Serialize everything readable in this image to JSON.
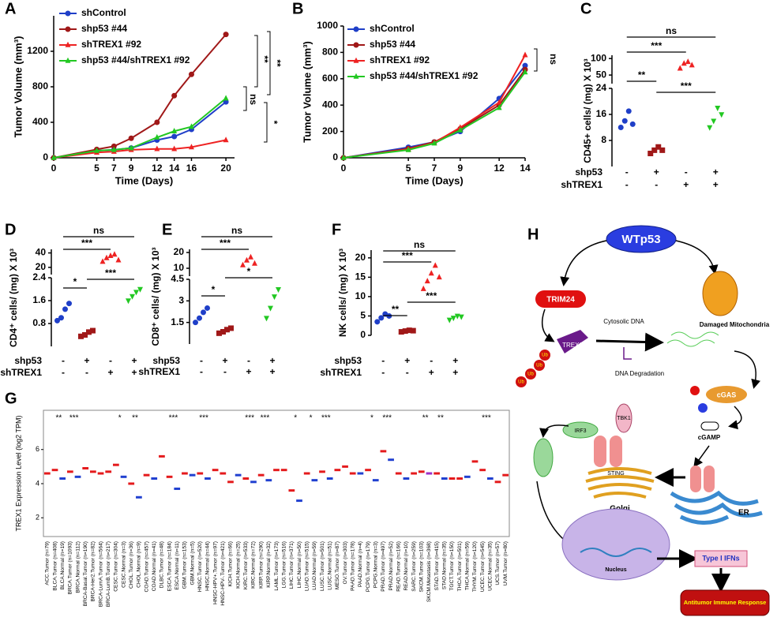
{
  "chart_data": [
    {
      "type": "line",
      "label": "A",
      "xlabel": "Time (Days)",
      "ylabel": "Tumor Volume (mm³)",
      "x": [
        0,
        5,
        7,
        9,
        12,
        14,
        16,
        20
      ],
      "xlim": [
        0,
        21
      ],
      "xticks": [
        0,
        5,
        7,
        9,
        12,
        14,
        16,
        20
      ],
      "ylim": [
        0,
        1600
      ],
      "yticks": [
        0,
        400,
        800,
        1200
      ],
      "series": [
        {
          "name": "shControl",
          "color": "#1f3fc8",
          "marker": "circle",
          "values": [
            0,
            80,
            90,
            110,
            200,
            240,
            320,
            630
          ]
        },
        {
          "name": "shp53 #44",
          "color": "#a01818",
          "marker": "circle",
          "values": [
            0,
            95,
            130,
            220,
            400,
            700,
            940,
            1390
          ]
        },
        {
          "name": "shTREX1 #92",
          "color": "#ee2222",
          "marker": "triangle",
          "values": [
            0,
            60,
            70,
            90,
            100,
            100,
            120,
            200
          ]
        },
        {
          "name": "shp53 #44/shTREX1 #92",
          "color": "#22c822",
          "marker": "triangle",
          "values": [
            0,
            80,
            90,
            110,
            230,
            300,
            350,
            670
          ]
        }
      ],
      "annotations": [
        "**",
        "**",
        "ns",
        "*"
      ]
    },
    {
      "type": "line",
      "label": "B",
      "xlabel": "Time (Days)",
      "ylabel": "Tumor Volume (mm³)",
      "x": [
        0,
        5,
        7,
        9,
        12,
        14
      ],
      "xlim": [
        0,
        14
      ],
      "xticks": [
        0,
        5,
        7,
        9,
        12,
        14
      ],
      "ylim": [
        0,
        1000
      ],
      "yticks": [
        0,
        200,
        400,
        600,
        800,
        1000
      ],
      "series": [
        {
          "name": "shControl",
          "color": "#1f3fc8",
          "marker": "circle",
          "values": [
            0,
            80,
            120,
            200,
            450,
            700
          ]
        },
        {
          "name": "shp53 #44",
          "color": "#a01818",
          "marker": "circle",
          "values": [
            0,
            70,
            120,
            220,
            400,
            670
          ]
        },
        {
          "name": "shTREX1 #92",
          "color": "#ee2222",
          "marker": "triangle",
          "values": [
            0,
            65,
            115,
            230,
            420,
            780
          ]
        },
        {
          "name": "shp53 #44/shTREX1 #92",
          "color": "#22c822",
          "marker": "triangle",
          "values": [
            0,
            60,
            110,
            210,
            380,
            650
          ]
        }
      ],
      "annotations": [
        "ns"
      ]
    },
    {
      "type": "dot",
      "label": "C",
      "ylabel": "CD45+ cells/ (mg) X 10³",
      "ylim": [
        0,
        24
      ],
      "yticks": [
        8,
        16,
        24
      ],
      "ylim_upper": [
        24,
        110
      ],
      "yticks_upper": [
        50,
        100
      ],
      "row_labels": [
        "shp53",
        "shTREX1"
      ],
      "rows": [
        [
          "-",
          "+",
          "-",
          "+"
        ],
        [
          "-",
          "-",
          "+",
          "+"
        ]
      ],
      "groups": [
        {
          "color": "#1f3fc8",
          "marker": "circle",
          "values": [
            12,
            14,
            17,
            13
          ]
        },
        {
          "color": "#a01818",
          "marker": "square",
          "values": [
            4,
            5,
            6,
            5
          ]
        },
        {
          "color": "#ee2222",
          "marker": "triangle",
          "values": [
            70,
            85,
            90,
            80
          ]
        },
        {
          "color": "#22c822",
          "marker": "triangle-down",
          "values": [
            12,
            14,
            18,
            16
          ]
        }
      ],
      "annotations": [
        "ns",
        "***",
        "**",
        "***"
      ]
    },
    {
      "type": "dot",
      "label": "D",
      "ylabel": "CD4⁺ cells/ (mg) X 10³",
      "ylim": [
        0,
        2.4
      ],
      "yticks": [
        0.8,
        1.6,
        2.4
      ],
      "ylim_upper": [
        10,
        45
      ],
      "yticks_upper": [
        20,
        40
      ],
      "row_labels": [
        "shp53",
        "shTREX1"
      ],
      "rows": [
        [
          "-",
          "+",
          "-",
          "+"
        ],
        [
          "-",
          "-",
          "+",
          "+"
        ]
      ],
      "groups": [
        {
          "color": "#1f3fc8",
          "marker": "circle",
          "values": [
            0.9,
            1.0,
            1.3,
            1.5
          ]
        },
        {
          "color": "#a01818",
          "marker": "square",
          "values": [
            0.35,
            0.4,
            0.5,
            0.55
          ]
        },
        {
          "color": "#ee2222",
          "marker": "triangle",
          "values": [
            28,
            33,
            36,
            38,
            30
          ]
        },
        {
          "color": "#22c822",
          "marker": "triangle-down",
          "values": [
            1.6,
            1.75,
            1.9,
            2.0
          ]
        }
      ],
      "annotations": [
        "ns",
        "***",
        "*",
        "***"
      ]
    },
    {
      "type": "dot",
      "label": "E",
      "ylabel": "CD8⁺ cells/ (mg) X 10³",
      "ylim": [
        0,
        4.5
      ],
      "yticks": [
        1.5,
        3,
        4.5
      ],
      "ylim_upper": [
        5,
        22
      ],
      "yticks_upper": [
        10,
        20
      ],
      "row_labels": [
        "shp53",
        "shTREX1"
      ],
      "rows": [
        [
          "-",
          "+",
          "-",
          "+"
        ],
        [
          "-",
          "-",
          "+",
          "+"
        ]
      ],
      "groups": [
        {
          "color": "#1f3fc8",
          "marker": "circle",
          "values": [
            1.5,
            1.8,
            2.2,
            2.5
          ]
        },
        {
          "color": "#a01818",
          "marker": "square",
          "values": [
            0.75,
            0.85,
            1.0,
            1.1
          ]
        },
        {
          "color": "#ee2222",
          "marker": "triangle",
          "values": [
            12,
            15,
            17,
            13
          ]
        },
        {
          "color": "#22c822",
          "marker": "triangle-down",
          "values": [
            1.8,
            2.5,
            3.3,
            3.8
          ]
        }
      ],
      "annotations": [
        "ns",
        "***",
        "*",
        "*"
      ]
    },
    {
      "type": "dot",
      "label": "F",
      "ylabel": "NK cells/ (mg) X 10³",
      "ylim": [
        0,
        22
      ],
      "yticks": [
        0,
        5,
        10,
        15,
        20
      ],
      "row_labels": [
        "shp53",
        "shTREX1"
      ],
      "rows": [
        [
          "-",
          "+",
          "-",
          "+"
        ],
        [
          "-",
          "-",
          "+",
          "+"
        ]
      ],
      "groups": [
        {
          "color": "#1f3fc8",
          "marker": "circle",
          "values": [
            3.5,
            4.5,
            5.5,
            5
          ]
        },
        {
          "color": "#a01818",
          "marker": "square",
          "values": [
            0.9,
            1.1,
            1.3,
            1.2
          ]
        },
        {
          "color": "#ee2222",
          "marker": "triangle",
          "values": [
            12,
            14,
            16,
            18,
            15
          ]
        },
        {
          "color": "#22c822",
          "marker": "triangle-down",
          "values": [
            4,
            4.5,
            5,
            4.8
          ]
        }
      ],
      "annotations": [
        "ns",
        "***",
        "**",
        "***"
      ]
    },
    {
      "type": "box",
      "label": "G",
      "ylabel": "TREX1 Expression Level (log2 TPM)",
      "ylim": [
        0.9,
        8.3
      ],
      "yticks": [
        2,
        4,
        6
      ],
      "categories": [
        "ACC.Tumor (n=79)",
        "BLCA.Tumor (n=408)",
        "BLCA.Normal (n=19)",
        "BRCA.Tumor (n=1093)",
        "BRCA.Normal (n=112)",
        "BRCA-Basal.Tumor (n=190)",
        "BRCA-Her2.Tumor (n=82)",
        "BRCA-LumA.Tumor (n=564)",
        "BRCA-LumB.Tumor (n=217)",
        "CESC.Tumor (n=304)",
        "CESC.Normal (n=3)",
        "CHOL.Tumor (n=36)",
        "CHOL.Normal (n=9)",
        "COAD.Tumor (n=457)",
        "COAD.Normal (n=41)",
        "DLBC.Tumor (n=48)",
        "ESCA.Tumor (n=184)",
        "ESCA.Normal (n=11)",
        "GBM.Tumor (n=153)",
        "GBM.Normal (n=5)",
        "HNSC.Tumor (n=520)",
        "HNSC.Normal (n=44)",
        "HNSC-HPV+.Tumor (n=97)",
        "HNSC-HPV-.Tumor (n=421)",
        "KICH.Tumor (n=66)",
        "KICH.Normal (n=25)",
        "KIRC.Tumor (n=533)",
        "KIRC.Normal (n=72)",
        "KIRP.Tumor (n=290)",
        "KIRP.Normal (n=32)",
        "LAML.Tumor (n=173)",
        "LGG.Tumor (n=516)",
        "LIHC.Tumor (n=371)",
        "LIHC.Normal (n=50)",
        "LUAD.Tumor (n=515)",
        "LUAD.Normal (n=59)",
        "LUSC.Tumor (n=501)",
        "LUSC.Normal (n=51)",
        "MESO.Tumor (n=87)",
        "OV.Tumor (n=303)",
        "PAAD.Tumor (n=178)",
        "PAAD.Normal (n=4)",
        "PCPG.Tumor (n=179)",
        "PCPG.Normal (n=3)",
        "PRAD.Tumor (n=497)",
        "PRAD.Normal (n=52)",
        "READ.Tumor (n=166)",
        "READ.Normal (n=10)",
        "SARC.Tumor (n=259)",
        "SKCM.Tumor (n=103)",
        "SKCM.Metastasis (n=368)",
        "STAD.Tumor (n=415)",
        "STAD.Normal (n=35)",
        "TGCT.Tumor (n=150)",
        "THCA.Tumor (n=501)",
        "THCA.Normal (n=59)",
        "THYM.Tumor (n=120)",
        "UCEC.Tumor (n=545)",
        "UCEC.Normal (n=35)",
        "UCS.Tumor (n=57)",
        "UVM.Tumor (n=80)"
      ],
      "values": [
        4.6,
        4.8,
        4.3,
        4.7,
        4.4,
        4.9,
        4.7,
        4.6,
        4.7,
        5.1,
        4.4,
        4.0,
        3.2,
        4.5,
        4.3,
        5.6,
        4.4,
        3.7,
        4.6,
        4.5,
        4.6,
        4.3,
        4.8,
        4.6,
        4.1,
        4.5,
        4.3,
        4.1,
        4.5,
        4.2,
        4.8,
        4.8,
        3.6,
        3.0,
        4.6,
        4.2,
        4.7,
        4.3,
        4.8,
        5.0,
        4.6,
        4.6,
        4.8,
        4.2,
        5.9,
        5.4,
        4.6,
        4.3,
        4.6,
        4.7,
        4.6,
        4.6,
        4.3,
        4.3,
        4.3,
        4.4,
        5.3,
        4.8,
        4.3,
        4.1,
        4.5
      ],
      "colors": [
        "#e41a1c",
        "#e41a1c",
        "#2040d0",
        "#e41a1c",
        "#2040d0",
        "#e41a1c",
        "#e41a1c",
        "#e41a1c",
        "#e41a1c",
        "#e41a1c",
        "#2040d0",
        "#e41a1c",
        "#2040d0",
        "#e41a1c",
        "#2040d0",
        "#e41a1c",
        "#e41a1c",
        "#2040d0",
        "#e41a1c",
        "#2040d0",
        "#e41a1c",
        "#2040d0",
        "#e41a1c",
        "#e41a1c",
        "#e41a1c",
        "#2040d0",
        "#e41a1c",
        "#2040d0",
        "#e41a1c",
        "#2040d0",
        "#e41a1c",
        "#e41a1c",
        "#e41a1c",
        "#2040d0",
        "#e41a1c",
        "#2040d0",
        "#e41a1c",
        "#2040d0",
        "#e41a1c",
        "#e41a1c",
        "#e41a1c",
        "#2040d0",
        "#e41a1c",
        "#2040d0",
        "#e41a1c",
        "#2040d0",
        "#e41a1c",
        "#2040d0",
        "#e41a1c",
        "#e41a1c",
        "#9b30c8",
        "#e41a1c",
        "#2040d0",
        "#e41a1c",
        "#e41a1c",
        "#2040d0",
        "#e41a1c",
        "#e41a1c",
        "#2040d0",
        "#e41a1c",
        "#e41a1c"
      ],
      "significance": [
        null,
        "**",
        null,
        "***",
        null,
        null,
        null,
        null,
        null,
        "*",
        null,
        "**",
        null,
        null,
        null,
        null,
        "***",
        null,
        null,
        null,
        "***",
        null,
        null,
        null,
        null,
        null,
        "***",
        null,
        "***",
        null,
        null,
        null,
        "*",
        null,
        "*",
        null,
        "***",
        null,
        null,
        null,
        null,
        null,
        "*",
        null,
        "***",
        null,
        null,
        null,
        null,
        "**",
        null,
        "**",
        null,
        null,
        null,
        null,
        null,
        "***",
        null,
        null,
        null
      ]
    }
  ],
  "diagram": {
    "label": "H",
    "wtp53": "WTp53",
    "trim24": "TRIM24",
    "trex1": "TREX1",
    "ub": "Ub",
    "cytosolic_dna": "Cytosolic DNA",
    "dna_degradation": "DNA Degradation",
    "damaged_mitochondria": "Damaged Mitochondria",
    "cgas": "cGAS",
    "cgamp": "cGAMP",
    "irf3": "IRF3",
    "tbk1": "TBK1",
    "sting": "STING",
    "golgi": "Golgi",
    "er": "ER",
    "nucleus": "Nucleus",
    "type1_ifns": "Type I IFNs",
    "antitumor": "Antitumor Immune Response"
  }
}
